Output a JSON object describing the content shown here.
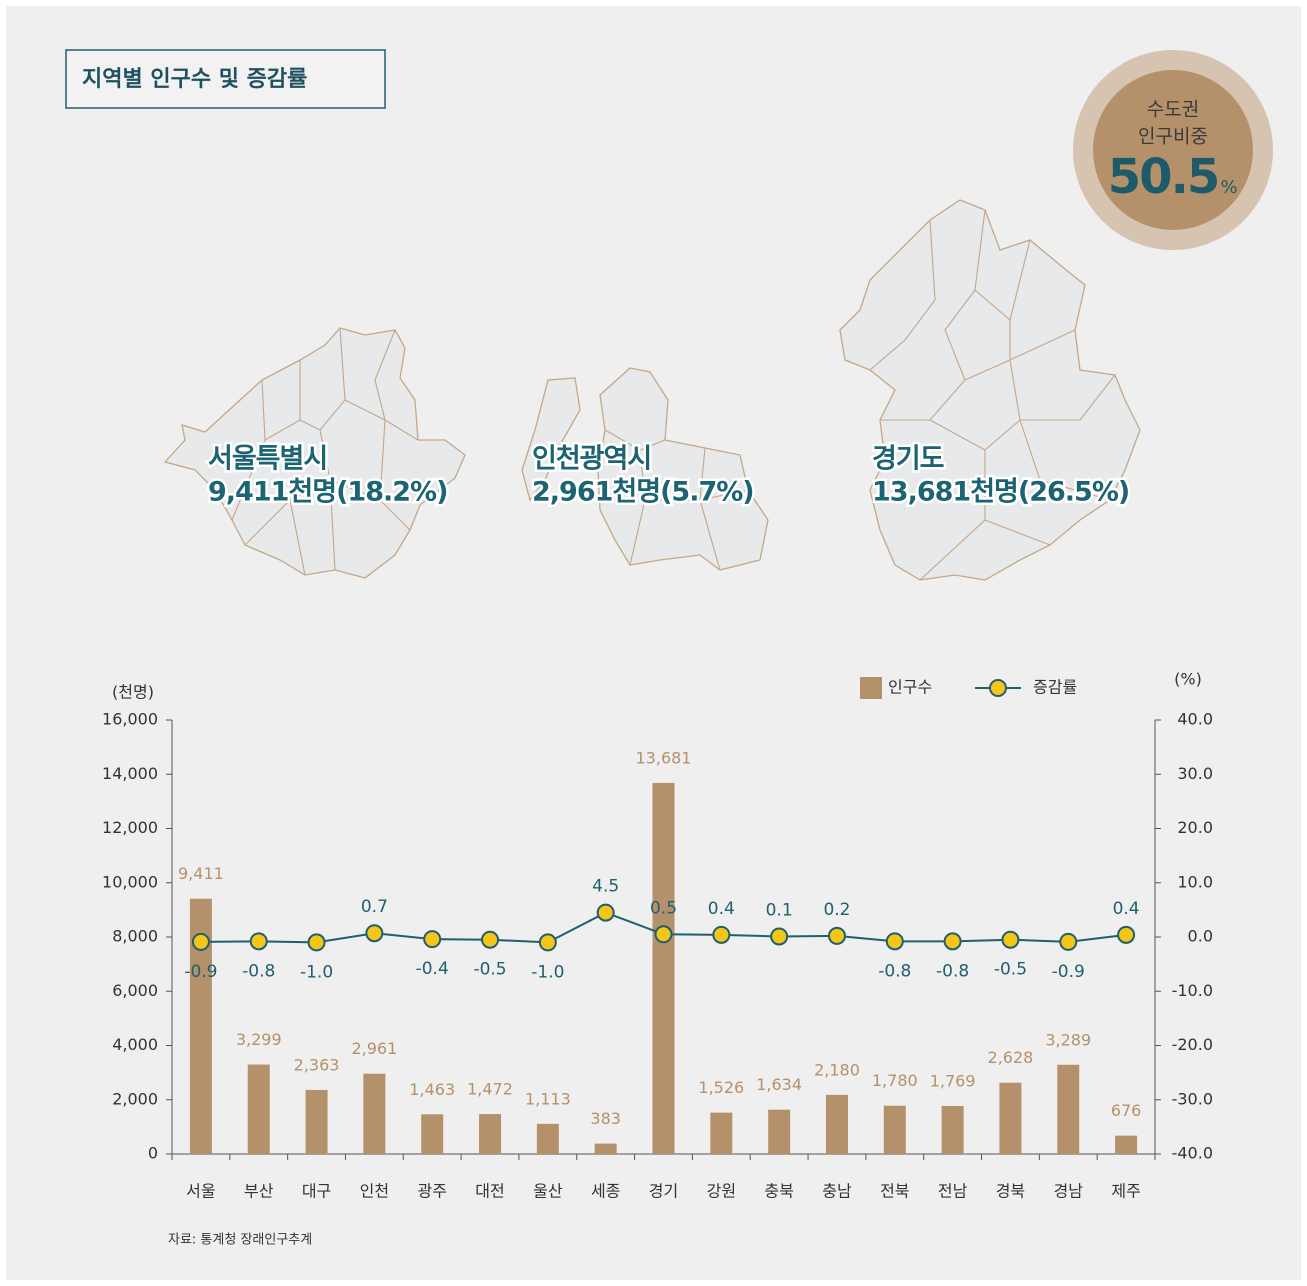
{
  "header": {
    "title": "지역별 인구수 및 증감률"
  },
  "badge": {
    "line1": "수도권",
    "line2": "인구비중",
    "value": "50.5",
    "unit": "%"
  },
  "maps": [
    {
      "name": "서울특별시",
      "detail": "9,411천명(18.2%)"
    },
    {
      "name": "인천광역시",
      "detail": "2,961천명(5.7%)"
    },
    {
      "name": "경기도",
      "detail": "13,681천명(26.5%)"
    }
  ],
  "chart_data": {
    "type": "bar",
    "y_label": "(천명)",
    "y2_label": "(%)",
    "categories": [
      "서울",
      "부산",
      "대구",
      "인천",
      "광주",
      "대전",
      "울산",
      "세종",
      "경기",
      "강원",
      "충북",
      "충남",
      "전북",
      "전남",
      "경북",
      "경남",
      "제주"
    ],
    "series": [
      {
        "name": "인구수",
        "type": "bar",
        "color": "#b5916b",
        "values": [
          9411,
          3299,
          2363,
          2961,
          1463,
          1472,
          1113,
          383,
          13681,
          1526,
          1634,
          2180,
          1780,
          1769,
          2628,
          3289,
          676
        ],
        "value_labels": [
          "9,411",
          "3,299",
          "2,363",
          "2,961",
          "1,463",
          "1,472",
          "1,113",
          "383",
          "13,681",
          "1,526",
          "1,634",
          "2,180",
          "1,780",
          "1,769",
          "2,628",
          "3,289",
          "676"
        ]
      },
      {
        "name": "증감률",
        "type": "line",
        "axis": "y2",
        "color": "#1f5f6e",
        "marker_color": "#f5c518",
        "values": [
          -0.9,
          -0.8,
          -1.0,
          0.7,
          -0.4,
          -0.5,
          -1.0,
          4.5,
          0.5,
          0.4,
          0.1,
          0.2,
          -0.8,
          -0.8,
          -0.5,
          -0.9,
          0.4
        ],
        "value_labels": [
          "-0.9",
          "-0.8",
          "-1.0",
          "0.7",
          "-0.4",
          "-0.5",
          "-1.0",
          "4.5",
          "0.5",
          "0.4",
          "0.1",
          "0.2",
          "-0.8",
          "-0.8",
          "-0.5",
          "-0.9",
          "0.4"
        ]
      }
    ],
    "ylim": [
      0,
      16000
    ],
    "yticks": [
      0,
      {
        "value": 2000,
        "label": "2,000"
      },
      {
        "value": 4000,
        "label": "4,000"
      },
      {
        "value": 6000,
        "label": "6,000"
      },
      {
        "value": 8000,
        "label": "8,000"
      },
      {
        "value": 10000,
        "label": "10,000"
      },
      {
        "value": 12000,
        "label": "12,000"
      },
      {
        "value": 14000,
        "label": "14,000"
      },
      {
        "value": 16000,
        "label": "16,000"
      }
    ],
    "y2lim": [
      -40,
      40
    ],
    "y2ticks": [
      {
        "value": -40,
        "label": "-40.0"
      },
      {
        "value": -30,
        "label": "-30.0"
      },
      {
        "value": -20,
        "label": "-20.0"
      },
      {
        "value": -10,
        "label": "-10.0"
      },
      {
        "value": 0,
        "label": "0.0"
      },
      {
        "value": 10,
        "label": "10.0"
      },
      {
        "value": 20,
        "label": "20.0"
      },
      {
        "value": 30,
        "label": "30.0"
      },
      {
        "value": 40,
        "label": "40.0"
      }
    ],
    "legend": "top-right",
    "grid": false
  },
  "source": "자료: 통계청 장래인구추계"
}
